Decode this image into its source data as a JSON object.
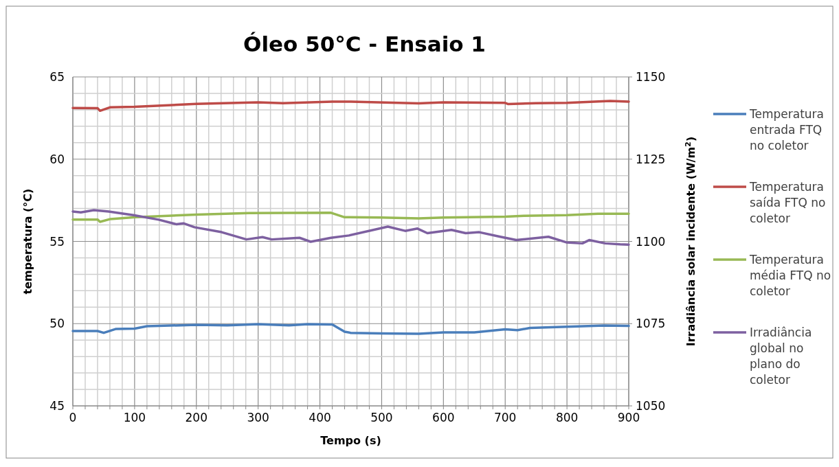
{
  "chart_data": {
    "type": "line",
    "title": "Óleo 50°C - Ensaio 1",
    "xlabel": "Tempo (s)",
    "ylabel": "temperatura (°C)",
    "y2label": "Irradiância solar incidente (W/m$^{2}$)",
    "xlim": [
      0,
      900
    ],
    "ylim": [
      45,
      65
    ],
    "y2lim": [
      1050,
      1150
    ],
    "xticks": [
      0,
      {
        "value": 20,
        "label": null
      },
      {
        "value": 40,
        "label": null
      },
      {
        "value": 60,
        "label": null
      },
      {
        "value": 80,
        "label": null
      },
      100,
      {
        "value": 120,
        "label": null
      },
      {
        "value": 140,
        "label": null
      },
      {
        "value": 160,
        "label": null
      },
      {
        "value": 180,
        "label": null
      },
      200,
      {
        "value": 220,
        "label": null
      },
      {
        "value": 240,
        "label": null
      },
      {
        "value": 260,
        "label": null
      },
      {
        "value": 280,
        "label": null
      },
      300,
      {
        "value": 320,
        "label": null
      },
      {
        "value": 340,
        "label": null
      },
      {
        "value": 360,
        "label": null
      },
      {
        "value": 380,
        "label": null
      },
      400,
      {
        "value": 420,
        "label": null
      },
      {
        "value": 440,
        "label": null
      },
      {
        "value": 460,
        "label": null
      },
      {
        "value": 480,
        "label": null
      },
      500,
      {
        "value": 520,
        "label": null
      },
      {
        "value": 540,
        "label": null
      },
      {
        "value": 560,
        "label": null
      },
      {
        "value": 580,
        "label": null
      },
      600,
      {
        "value": 620,
        "label": null
      },
      {
        "value": 640,
        "label": null
      },
      {
        "value": 660,
        "label": null
      },
      {
        "value": 680,
        "label": null
      },
      700,
      {
        "value": 720,
        "label": null
      },
      {
        "value": 740,
        "label": null
      },
      {
        "value": 760,
        "label": null
      },
      {
        "value": 780,
        "label": null
      },
      800,
      {
        "value": 820,
        "label": null
      },
      {
        "value": 840,
        "label": null
      },
      {
        "value": 860,
        "label": null
      },
      {
        "value": 880,
        "label": null
      },
      900
    ],
    "yticks": [
      45,
      {
        "value": 46,
        "label": null
      },
      {
        "value": 47,
        "label": null
      },
      {
        "value": 48,
        "label": null
      },
      {
        "value": 49,
        "label": null
      },
      50,
      {
        "value": 51,
        "label": null
      },
      {
        "value": 52,
        "label": null
      },
      {
        "value": 53,
        "label": null
      },
      {
        "value": 54,
        "label": null
      },
      55,
      {
        "value": 56,
        "label": null
      },
      {
        "value": 57,
        "label": null
      },
      {
        "value": 58,
        "label": null
      },
      {
        "value": 59,
        "label": null
      },
      60,
      {
        "value": 61,
        "label": null
      },
      {
        "value": 62,
        "label": null
      },
      {
        "value": 63,
        "label": null
      },
      {
        "value": 64,
        "label": null
      },
      65
    ],
    "y2ticks": [
      1050,
      1075,
      1100,
      1125,
      1150
    ],
    "grid": true,
    "legend": "right",
    "marker": "none",
    "line_style": "solid",
    "series": [
      {
        "name": "Temperatura entrada FTQ no coletor",
        "color": "#4a7ebb",
        "x": [
          0,
          40,
          50,
          70,
          100,
          120,
          200,
          250,
          300,
          350,
          380,
          420,
          440,
          450,
          500,
          560,
          600,
          650,
          700,
          720,
          740,
          800,
          860,
          900
        ],
        "values": [
          49.55,
          49.55,
          49.44,
          49.68,
          49.7,
          49.84,
          49.93,
          49.9,
          49.97,
          49.9,
          49.97,
          49.95,
          49.51,
          49.44,
          49.41,
          49.38,
          49.47,
          49.47,
          49.66,
          49.6,
          49.74,
          49.81,
          49.88,
          49.86
        ]
      },
      {
        "name": "Temperatura saída FTQ no coletor",
        "color": "#be4b48",
        "x": [
          0,
          40,
          44,
          60,
          100,
          200,
          300,
          340,
          420,
          450,
          560,
          600,
          700,
          705,
          750,
          800,
          870,
          900
        ],
        "values": [
          63.11,
          63.1,
          62.94,
          63.15,
          63.18,
          63.36,
          63.45,
          63.4,
          63.5,
          63.5,
          63.39,
          63.45,
          63.42,
          63.35,
          63.4,
          63.42,
          63.54,
          63.5
        ]
      },
      {
        "name": "Temperatura média FTQ no coletor",
        "color": "#98b954",
        "x": [
          0,
          40,
          44,
          61,
          101,
          200,
          285,
          418,
          440,
          500,
          560,
          600,
          700,
          730,
          800,
          850,
          900
        ],
        "values": [
          56.33,
          56.33,
          56.19,
          56.36,
          56.47,
          56.63,
          56.72,
          56.74,
          56.47,
          56.45,
          56.4,
          56.45,
          56.5,
          56.56,
          56.6,
          56.68,
          56.68
        ]
      },
      {
        "name": "Irradiância global no plano do coletor",
        "color": "#7d60a0",
        "axis": "y2",
        "x": [
          0,
          13,
          34,
          58,
          98,
          139,
          168,
          179,
          197,
          241,
          281,
          307,
          322,
          367,
          385,
          418,
          447,
          510,
          538,
          558,
          574,
          613,
          636,
          658,
          692,
          718,
          770,
          799,
          825,
          836,
          862,
          886,
          900
        ],
        "values": [
          1109.1,
          1108.8,
          1109.5,
          1109.1,
          1108.0,
          1106.6,
          1105.2,
          1105.5,
          1104.3,
          1102.8,
          1100.6,
          1101.3,
          1100.6,
          1101.1,
          1099.9,
          1101.1,
          1101.8,
          1104.5,
          1103.2,
          1103.9,
          1102.5,
          1103.5,
          1102.5,
          1102.8,
          1101.4,
          1100.4,
          1101.4,
          1099.7,
          1099.4,
          1100.4,
          1099.4,
          1099.1,
          1099.0
        ]
      }
    ]
  }
}
